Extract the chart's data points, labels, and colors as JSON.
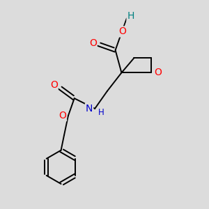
{
  "bg_color": "#dcdcdc",
  "atom_colors": {
    "O": "#ff0000",
    "N": "#0000cc",
    "H_acid": "#008080"
  },
  "bond_color": "#000000",
  "bond_width": 1.4,
  "font_size": 8.5,
  "fig_size": [
    3.0,
    3.0
  ],
  "dpi": 100,
  "xlim": [
    0,
    10
  ],
  "ylim": [
    0,
    10
  ]
}
